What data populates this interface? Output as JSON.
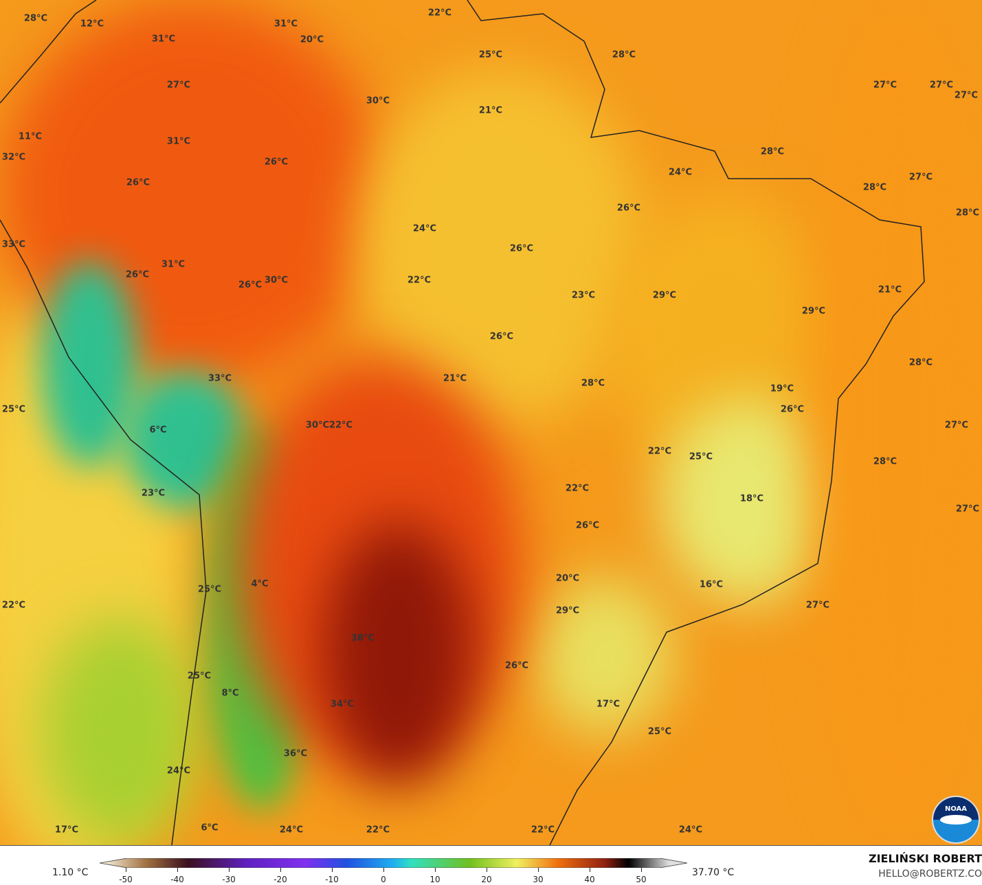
{
  "map": {
    "labels": [
      "28°C",
      "12°C",
      "31°C",
      "31°C",
      "20°C",
      "22°C",
      "25°C",
      "28°C",
      "27°C",
      "30°C",
      "21°C",
      "27°C",
      "27°C",
      "27°C",
      "11°C",
      "31°C",
      "32°C",
      "28°C",
      "26°C",
      "24°C",
      "27°C",
      "26°C",
      "28°C",
      "26°C",
      "28°C",
      "24°C",
      "33°C",
      "26°C",
      "31°C",
      "26°C",
      "26°C",
      "30°C",
      "22°C",
      "23°C",
      "29°C",
      "21°C",
      "29°C",
      "26°C",
      "28°C",
      "33°C",
      "21°C",
      "28°C",
      "19°C",
      "25°C",
      "26°C",
      "30°C",
      "22°C",
      "27°C",
      "6°C",
      "22°C",
      "25°C",
      "28°C",
      "22°C",
      "23°C",
      "18°C",
      "27°C",
      "26°C",
      "20°C",
      "4°C",
      "16°C",
      "25°C",
      "22°C",
      "27°C",
      "29°C",
      "38°C",
      "26°C",
      "25°C",
      "8°C",
      "34°C",
      "17°C",
      "25°C",
      "36°C",
      "24°C",
      "17°C",
      "6°C",
      "24°C",
      "22°C",
      "22°C",
      "24°C"
    ],
    "logo": "NOAA"
  },
  "legend": {
    "min": "1.10 °C",
    "max": "37.70 °C",
    "ticks": [
      "-50",
      "-40",
      "-30",
      "-20",
      "-10",
      "0",
      "10",
      "20",
      "30",
      "40",
      "50"
    ],
    "colors": [
      "#fffbe8",
      "#5a2a10",
      "#3a1040",
      "#7a30e0",
      "#2050e0",
      "#20a0f0",
      "#30e0c0",
      "#70c020",
      "#f0f060",
      "#f07010",
      "#902010",
      "#000000",
      "#e0e0e0"
    ]
  },
  "credit": {
    "author": "ZIELIŃSKI ROBERT",
    "email": "HELLO@ROBERTZ.CO"
  }
}
